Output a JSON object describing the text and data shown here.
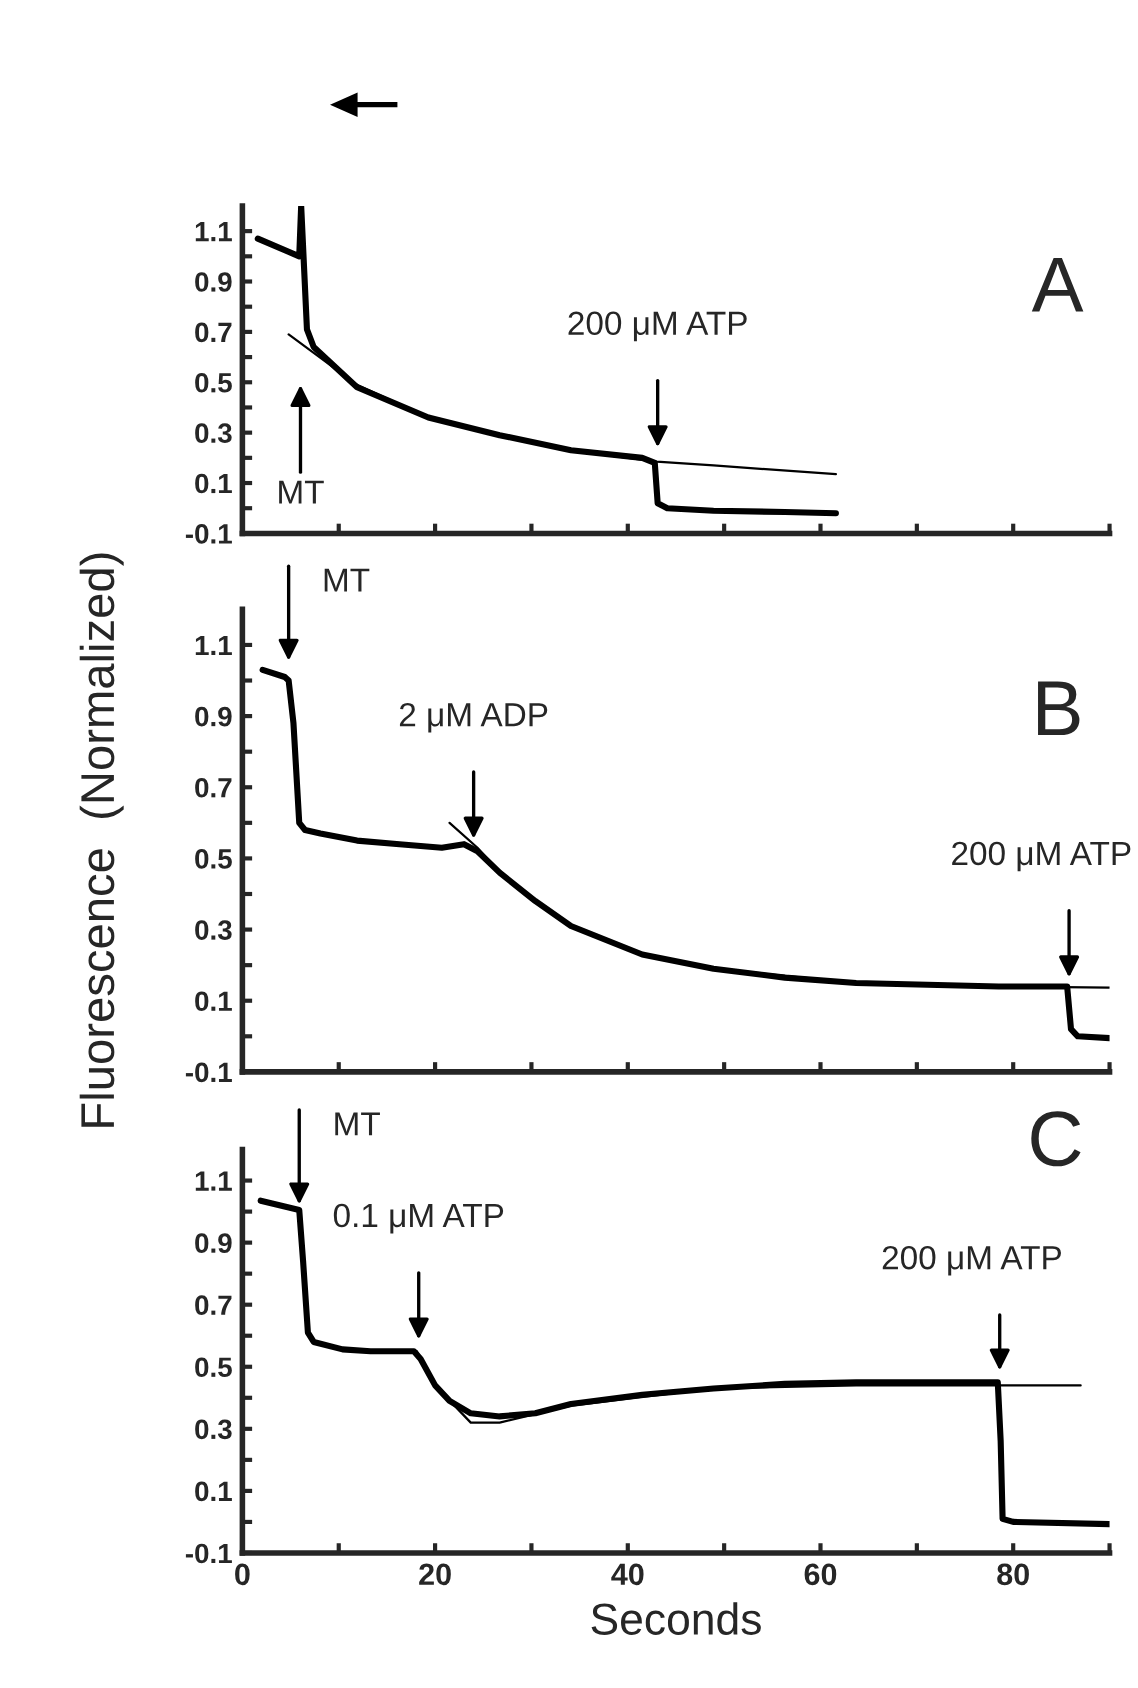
{
  "chart_data": [
    {
      "type": "line",
      "xlim": [
        0,
        90
      ],
      "ylim": [
        -0.1,
        1.2
      ],
      "tick_labels": "y",
      "xticks": [
        {
          "value": 0,
          "label": null
        },
        {
          "value": 10,
          "label": null
        },
        {
          "value": 20,
          "label": null
        },
        {
          "value": 30,
          "label": null
        },
        {
          "value": 40,
          "label": null
        },
        {
          "value": 50,
          "label": null
        },
        {
          "value": 60,
          "label": null
        },
        {
          "value": 70,
          "label": null
        },
        {
          "value": 80,
          "label": null
        },
        {
          "value": 90,
          "label": null
        }
      ],
      "yticks": [
        -0.1,
        {
          "value": 0,
          "label": null
        },
        0.1,
        {
          "value": 0.2,
          "label": null
        },
        0.3,
        {
          "value": 0.4,
          "label": null
        },
        0.5,
        {
          "value": 0.6,
          "label": null
        },
        0.7,
        {
          "value": 0.8,
          "label": null
        },
        0.9,
        {
          "value": 1.0,
          "label": null
        },
        1.1
      ],
      "series": [
        {
          "color": "#000000",
          "x": [
            1.6,
            5.9,
            6.1,
            6.7,
            7.4,
            11.9,
            19.3,
            26.7,
            34.1,
            41.5,
            42.8,
            43.1,
            44.1,
            48.9,
            56.3,
            61.6
          ],
          "values": [
            1.07,
            1.0,
            1.2,
            0.71,
            0.64,
            0.48,
            0.36,
            0.29,
            0.23,
            0.2,
            0.18,
            0.02,
            0.0,
            -0.01,
            -0.015,
            -0.02
          ]
        },
        {
          "color": "#000000",
          "x": [
            4.8,
            11.9,
            19.3,
            26.7,
            34.1,
            43,
            48.9,
            61.6
          ],
          "values": [
            0.69,
            0.49,
            0.36,
            0.29,
            0.23,
            0.185,
            0.17,
            0.135
          ]
        }
      ],
      "annotations": [
        "A",
        "MT",
        {
          "text": "200 μM ATP",
          "x": 43.1,
          "y": 0.22
        }
      ]
    },
    {
      "type": "line",
      "xlim": [
        0,
        90
      ],
      "ylim": [
        -0.1,
        1.2
      ],
      "tick_labels": "y",
      "ylabel": "Fluorescence  (Normalized)",
      "xticks": [
        {
          "value": 0,
          "label": null
        },
        {
          "value": 10,
          "label": null
        },
        {
          "value": 20,
          "label": null
        },
        {
          "value": 30,
          "label": null
        },
        {
          "value": 40,
          "label": null
        },
        {
          "value": 50,
          "label": null
        },
        {
          "value": 60,
          "label": null
        },
        {
          "value": 70,
          "label": null
        },
        {
          "value": 80,
          "label": null
        },
        {
          "value": 90,
          "label": null
        }
      ],
      "yticks": [
        -0.1,
        {
          "value": 0,
          "label": null
        },
        0.1,
        {
          "value": 0.2,
          "label": null
        },
        0.3,
        {
          "value": 0.4,
          "label": null
        },
        0.5,
        {
          "value": 0.6,
          "label": null
        },
        0.7,
        {
          "value": 0.8,
          "label": null
        },
        0.9,
        {
          "value": 1.0,
          "label": null
        },
        1.1
      ],
      "series": [
        {
          "color": "#000000",
          "x": [
            2.1,
            4.4,
            4.8,
            5.3,
            5.9,
            6.5,
            8.1,
            11.9,
            16.3,
            20.7,
            23,
            24.4,
            26.7,
            30.4,
            34.1,
            37.8,
            41.5,
            48.9,
            56.3,
            63.7,
            71.1,
            78.5,
            85.6,
            86,
            86.7,
            90
          ],
          "values": [
            1.03,
            1.01,
            1.0,
            0.88,
            0.6,
            0.58,
            0.57,
            0.55,
            0.54,
            0.53,
            0.54,
            0.52,
            0.46,
            0.38,
            0.31,
            0.27,
            0.23,
            0.19,
            0.165,
            0.15,
            0.145,
            0.14,
            0.14,
            0.02,
            0.0,
            -0.005
          ]
        },
        {
          "color": "#000000",
          "x": [
            21.5,
            24.4,
            26.7,
            30.4,
            34.1,
            41.5,
            48.9,
            63.7,
            78.5,
            90
          ],
          "values": [
            0.6,
            0.53,
            0.46,
            0.38,
            0.31,
            0.23,
            0.19,
            0.15,
            0.14,
            0.137
          ]
        }
      ],
      "annotations": [
        "B",
        {
          "text": "MT",
          "x": 4.8,
          "y": 1.04
        },
        {
          "text": "2 μM ADP",
          "x": 24,
          "y": 0.54
        },
        {
          "text": "200 μM ATP",
          "x": 85.8,
          "y": 0.15
        }
      ]
    },
    {
      "type": "line",
      "xlim": [
        0,
        90
      ],
      "ylim": [
        -0.1,
        1.2
      ],
      "xlabel": "Seconds",
      "xticks": [
        0,
        {
          "value": 10,
          "label": null
        },
        20,
        {
          "value": 30,
          "label": null
        },
        40,
        {
          "value": 50,
          "label": null
        },
        60,
        {
          "value": 70,
          "label": null
        },
        80,
        {
          "value": 90,
          "label": null
        }
      ],
      "yticks": [
        -0.1,
        {
          "value": 0,
          "label": null
        },
        0.1,
        {
          "value": 0.2,
          "label": null
        },
        0.3,
        {
          "value": 0.4,
          "label": null
        },
        0.5,
        {
          "value": 0.6,
          "label": null
        },
        0.7,
        {
          "value": 0.8,
          "label": null
        },
        0.9,
        {
          "value": 1.0,
          "label": null
        },
        1.1
      ],
      "series": [
        {
          "color": "#000000",
          "x": [
            1.9,
            5.9,
            6.3,
            6.8,
            7.4,
            10.4,
            13.3,
            17.8,
            18.5,
            20,
            21.5,
            23.7,
            26.7,
            30.4,
            34.1,
            41.5,
            48.9,
            56.3,
            63.7,
            78.4,
            78.7,
            78.9,
            80,
            90
          ],
          "values": [
            1.035,
            1.005,
            0.84,
            0.61,
            0.58,
            0.556,
            0.55,
            0.55,
            0.525,
            0.44,
            0.39,
            0.35,
            0.34,
            0.35,
            0.38,
            0.41,
            0.43,
            0.445,
            0.45,
            0.45,
            0.26,
            0.01,
            0.0,
            -0.007
          ]
        },
        {
          "color": "#000000",
          "x": [
            18.1,
            20,
            23.7,
            26.7,
            34.1,
            48.9,
            63.7,
            87
          ],
          "values": [
            0.55,
            0.44,
            0.32,
            0.32,
            0.375,
            0.43,
            0.44,
            0.44
          ]
        }
      ],
      "annotations": [
        "C",
        {
          "text": "MT",
          "x": 5.9,
          "y": 1.005
        },
        {
          "text": "0.1 μM ATP",
          "x": 18.3,
          "y": 0.57
        },
        {
          "text": "200 μM ATP",
          "x": 78.6,
          "y": 0.47
        }
      ]
    }
  ]
}
